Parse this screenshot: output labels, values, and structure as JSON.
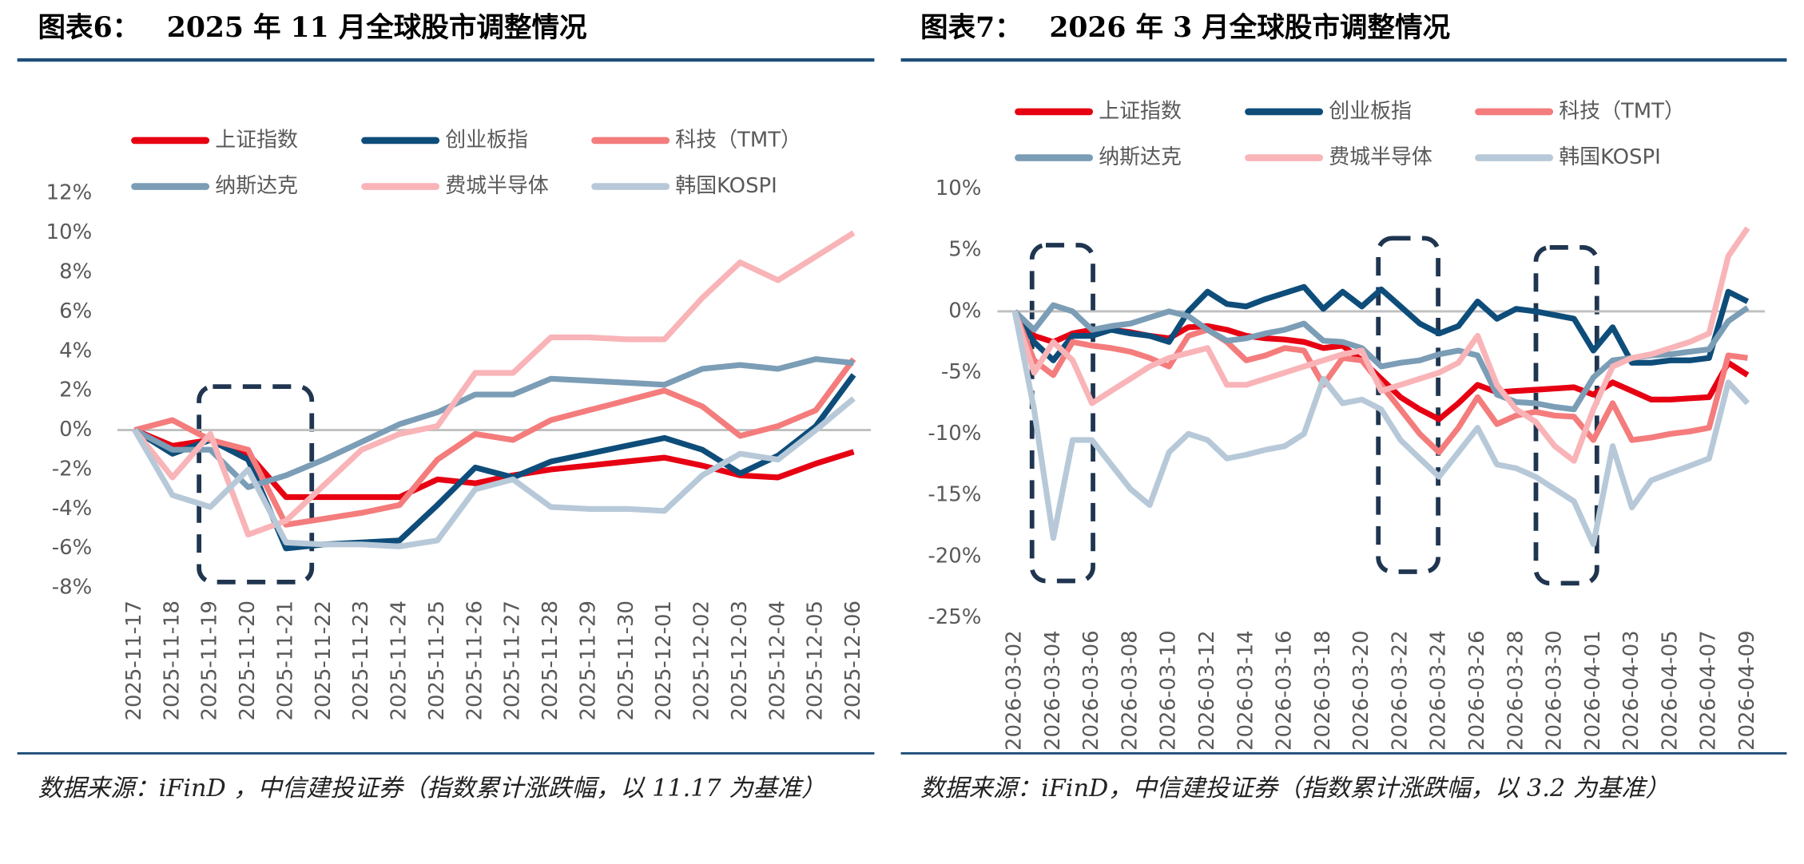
{
  "chart_data": [
    {
      "type": "line",
      "label": "图表6：",
      "title": "2025 年 11 月全球股市调整情况",
      "source": "数据来源：iFinD ，中信建投证券（指数累计涨跌幅，以 11.17 为基准）",
      "categories": [
        "2025-11-17",
        "2025-11-18",
        "2025-11-19",
        "2025-11-20",
        "2025-11-21",
        "2025-11-22",
        "2025-11-23",
        "2025-11-24",
        "2025-11-25",
        "2025-11-26",
        "2025-11-27",
        "2025-11-28",
        "2025-11-29",
        "2025-11-30",
        "2025-12-01",
        "2025-12-02",
        "2025-12-03",
        "2025-12-04",
        "2025-12-05",
        "2025-12-06"
      ],
      "series": [
        {
          "name": "上证指数",
          "color": "#e60012",
          "values": [
            0,
            -0.8,
            -0.5,
            -1.2,
            -3.4,
            -3.4,
            -3.4,
            -3.4,
            -2.5,
            -2.7,
            -2.3,
            -2.0,
            -1.8,
            -1.6,
            -1.4,
            -1.8,
            -2.3,
            -2.4,
            -1.7,
            -1.1
          ]
        },
        {
          "name": "创业板指",
          "color": "#0e4d7a",
          "values": [
            0,
            -1.2,
            -0.5,
            -1.5,
            -6.0,
            -5.8,
            -5.7,
            -5.6,
            -3.8,
            -1.9,
            -2.4,
            -1.6,
            -1.2,
            -0.8,
            -0.4,
            -1.0,
            -2.2,
            -1.3,
            0.2,
            2.8
          ]
        },
        {
          "name": "科技（TMT）",
          "color": "#f47c7c",
          "values": [
            0,
            0.5,
            -0.5,
            -1.0,
            -4.8,
            -4.5,
            -4.2,
            -3.8,
            -1.5,
            -0.2,
            -0.5,
            0.5,
            1.0,
            1.5,
            2.0,
            1.2,
            -0.3,
            0.2,
            1.0,
            3.6
          ]
        },
        {
          "name": "纳斯达克",
          "color": "#7b9db6",
          "values": [
            0,
            -1.0,
            -1.0,
            -2.9,
            -2.3,
            -1.5,
            -0.6,
            0.3,
            0.9,
            1.8,
            1.8,
            2.6,
            2.5,
            2.4,
            2.3,
            3.1,
            3.3,
            3.1,
            3.6,
            3.4
          ]
        },
        {
          "name": "费城半导体",
          "color": "#f9b4b8",
          "values": [
            0,
            -2.4,
            -0.2,
            -5.3,
            -4.6,
            -2.8,
            -1.0,
            -0.2,
            0.2,
            2.9,
            2.9,
            4.7,
            4.7,
            4.6,
            4.6,
            6.7,
            8.5,
            7.6,
            8.8,
            10.0
          ]
        },
        {
          "name": "韩国KOSPI",
          "color": "#b7c9d8",
          "values": [
            0,
            -3.3,
            -3.9,
            -2.0,
            -5.7,
            -5.8,
            -5.8,
            -5.9,
            -5.6,
            -3.0,
            -2.5,
            -3.9,
            -4.0,
            -4.0,
            -4.1,
            -2.3,
            -1.2,
            -1.5,
            0.0,
            1.6
          ]
        }
      ],
      "ylim": [
        -8,
        12
      ],
      "yticks": [
        {
          "value": -8,
          "label": "-8%"
        },
        {
          "value": -6,
          "label": "-6%"
        },
        {
          "value": -4,
          "label": "-4%"
        },
        {
          "value": -2,
          "label": "-2%"
        },
        {
          "value": 0,
          "label": "0%"
        },
        {
          "value": 2,
          "label": "2%"
        },
        {
          "value": 4,
          "label": "4%"
        },
        {
          "value": 6,
          "label": "6%"
        },
        {
          "value": 8,
          "label": "8%"
        },
        {
          "value": 10,
          "label": "10%"
        },
        {
          "value": 12,
          "label": "12%"
        }
      ],
      "grid": false
    },
    {
      "type": "line",
      "label": "图表7：",
      "title": "2026 年 3 月全球股市调整情况",
      "source": "数据来源：iFinD，中信建投证券（指数累计涨跌幅，以 3.2 为基准）",
      "categories": [
        "2026-03-02",
        null,
        "2026-03-04",
        null,
        "2026-03-06",
        null,
        "2026-03-08",
        null,
        "2026-03-10",
        null,
        "2026-03-12",
        null,
        "2026-03-14",
        null,
        "2026-03-16",
        null,
        "2026-03-18",
        null,
        "2026-03-20",
        null,
        "2026-03-22",
        null,
        "2026-03-24",
        null,
        "2026-03-26",
        null,
        "2026-03-28",
        null,
        "2026-03-30",
        null,
        "2026-04-01",
        null,
        "2026-04-03",
        null,
        "2026-04-05",
        null,
        "2026-04-07",
        null,
        "2026-04-09"
      ],
      "series": [
        {
          "name": "上证指数",
          "color": "#e60012",
          "values": [
            0,
            -2,
            -2.5,
            -1.8,
            -1.5,
            -1.5,
            -1.7,
            -2.0,
            -2.2,
            -1.3,
            -1.2,
            -1.5,
            -2.0,
            -2.2,
            -2.3,
            -2.5,
            -3.0,
            -2.8,
            -4.0,
            -5.5,
            -7.0,
            -8.0,
            -8.8,
            -7.5,
            -6.0,
            -6.6,
            -6.5,
            -6.4,
            -6.3,
            -6.2,
            -6.8,
            -5.8,
            -6.5,
            -7.2,
            -7.2,
            -7.1,
            -7.0,
            -4.2,
            -5.2
          ]
        },
        {
          "name": "创业板指",
          "color": "#0e4d7a",
          "values": [
            0,
            -2.5,
            -4,
            -2,
            -2,
            -1.5,
            -1.8,
            -2.0,
            -2.5,
            0,
            1.6,
            0.6,
            0.4,
            1.0,
            1.5,
            2.0,
            0.2,
            1.6,
            0.4,
            1.8,
            0.4,
            -1.0,
            -1.8,
            -1.2,
            0.8,
            -0.6,
            0.2,
            0,
            -0.3,
            -0.6,
            -3.2,
            -1.3,
            -4.2,
            -4.2,
            -4.0,
            -4.0,
            -3.8,
            1.6,
            0.8
          ]
        },
        {
          "name": "科技（TMT）",
          "color": "#f47c7c",
          "values": [
            0,
            -4,
            -5.2,
            -2.5,
            -2.8,
            -3.0,
            -3.3,
            -3.8,
            -4.5,
            -2.0,
            -1.5,
            -2.5,
            -4.0,
            -3.6,
            -3.0,
            -3.2,
            -6.0,
            -3.8,
            -4.0,
            -6.0,
            -8.0,
            -10.0,
            -11.5,
            -9.5,
            -7.0,
            -9.2,
            -8.5,
            -8.2,
            -8.5,
            -8.6,
            -10.5,
            -7.5,
            -10.5,
            -10.3,
            -10.0,
            -9.8,
            -9.5,
            -3.6,
            -3.8
          ]
        },
        {
          "name": "纳斯达克",
          "color": "#7b9db6",
          "values": [
            0,
            -1.5,
            0.5,
            0.0,
            -1.5,
            -1.2,
            -1.0,
            -0.5,
            0,
            -0.4,
            -1.5,
            -2.4,
            -2.2,
            -1.8,
            -1.5,
            -1.0,
            -2.4,
            -2.5,
            -3.0,
            -4.5,
            -4.2,
            -4.0,
            -3.5,
            -3.2,
            -3.6,
            -6.8,
            -7.4,
            -7.5,
            -7.8,
            -8.0,
            -5.4,
            -4.0,
            -3.8,
            -3.6,
            -3.5,
            -3.3,
            -3.1,
            -0.8,
            0.3
          ]
        },
        {
          "name": "费城半导体",
          "color": "#f9b4b8",
          "values": [
            0,
            -5.0,
            -2.5,
            -4.0,
            -7.5,
            -6.5,
            -5.5,
            -4.5,
            -3.8,
            -3.4,
            -3.0,
            -6.0,
            -6.0,
            -5.5,
            -5.0,
            -4.5,
            -4.0,
            -3.5,
            -3.2,
            -6.5,
            -6.0,
            -5.5,
            -5.0,
            -4.2,
            -2.0,
            -6.0,
            -8.0,
            -9.0,
            -11.0,
            -12.2,
            -8.0,
            -4.5,
            -3.8,
            -3.5,
            -3.0,
            -2.5,
            -1.8,
            4.5,
            6.8
          ]
        },
        {
          "name": "韩国KOSPI",
          "color": "#b7c9d8",
          "values": [
            0,
            -8,
            -18.5,
            -10.5,
            -10.5,
            -12.5,
            -14.5,
            -15.8,
            -11.5,
            -10.0,
            -10.5,
            -12.0,
            -11.7,
            -11.3,
            -11.0,
            -10.0,
            -5.5,
            -7.5,
            -7.2,
            -8.0,
            -10.5,
            -12.0,
            -13.5,
            -11.5,
            -9.5,
            -12.5,
            -12.8,
            -13.5,
            -14.5,
            -15.5,
            -19.0,
            -11.0,
            -16.0,
            -13.8,
            -13.2,
            -12.6,
            -12.0,
            -5.8,
            -7.5
          ]
        }
      ],
      "ylim": [
        -25,
        10
      ],
      "yticks": [
        {
          "value": -25,
          "label": "-25%"
        },
        {
          "value": -20,
          "label": "-20%"
        },
        {
          "value": -15,
          "label": "-15%"
        },
        {
          "value": -10,
          "label": "-10%"
        },
        {
          "value": -5,
          "label": "-5%"
        },
        {
          "value": 0,
          "label": "0%"
        },
        {
          "value": 5,
          "label": "5%"
        },
        {
          "value": 10,
          "label": "10%"
        }
      ],
      "grid": false
    }
  ]
}
